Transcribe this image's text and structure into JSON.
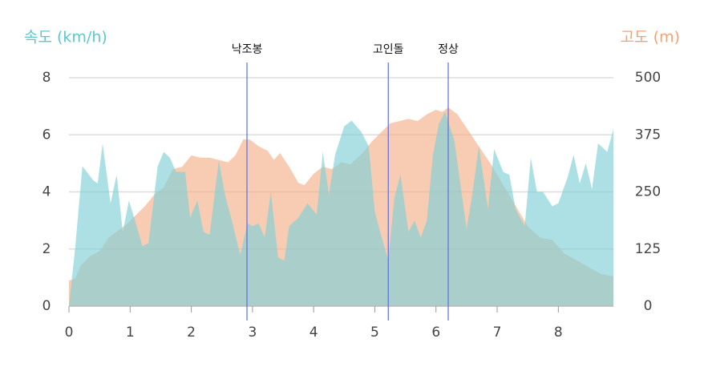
{
  "chart_data": {
    "type": "area",
    "ylabel": "속도 (km/h)",
    "y2label": "고도 (m)",
    "xlim": [
      0,
      8.9
    ],
    "xticks": [
      0,
      1,
      2,
      3,
      4,
      5,
      6,
      7,
      8
    ],
    "ylim": [
      0,
      8
    ],
    "yticks": [
      0,
      2,
      4,
      6,
      8
    ],
    "y2lim": [
      0,
      500
    ],
    "y2ticks": [
      0,
      125,
      250,
      375,
      500
    ],
    "grid": true,
    "series": [
      {
        "color": "#f5b088",
        "axis": "y2",
        "x": [
          0,
          0.1,
          0.2,
          0.35,
          0.5,
          0.65,
          0.8,
          0.95,
          1.1,
          1.25,
          1.4,
          1.55,
          1.7,
          1.85,
          2.0,
          2.15,
          2.3,
          2.45,
          2.6,
          2.72,
          2.85,
          2.95,
          3.1,
          3.25,
          3.35,
          3.45,
          3.6,
          3.75,
          3.85,
          4.0,
          4.15,
          4.3,
          4.45,
          4.6,
          4.8,
          4.95,
          5.1,
          5.25,
          5.4,
          5.55,
          5.7,
          5.85,
          6.0,
          6.1,
          6.2,
          6.35,
          6.5,
          6.7,
          6.9,
          7.1,
          7.3,
          7.5,
          7.7,
          7.9,
          8.1,
          8.3,
          8.5,
          8.7,
          8.9
        ],
        "values": [
          56,
          60,
          90,
          110,
          120,
          150,
          165,
          180,
          200,
          220,
          245,
          260,
          300,
          305,
          330,
          325,
          325,
          320,
          315,
          330,
          365,
          365,
          350,
          340,
          320,
          335,
          305,
          270,
          265,
          290,
          305,
          300,
          315,
          310,
          335,
          360,
          380,
          400,
          405,
          410,
          405,
          420,
          430,
          425,
          435,
          420,
          390,
          350,
          310,
          265,
          220,
          175,
          150,
          145,
          115,
          100,
          85,
          70,
          65
        ]
      },
      {
        "color": "#7fd0d6",
        "axis": "y",
        "x": [
          0,
          0.1,
          0.22,
          0.4,
          0.47,
          0.55,
          0.68,
          0.78,
          0.88,
          0.98,
          1.08,
          1.2,
          1.3,
          1.45,
          1.55,
          1.65,
          1.75,
          1.9,
          1.98,
          2.1,
          2.2,
          2.3,
          2.45,
          2.55,
          2.65,
          2.8,
          2.92,
          3.0,
          3.1,
          3.2,
          3.3,
          3.42,
          3.52,
          3.6,
          3.75,
          3.9,
          4.05,
          4.15,
          4.25,
          4.35,
          4.5,
          4.62,
          4.78,
          4.9,
          5.0,
          5.1,
          5.22,
          5.32,
          5.42,
          5.55,
          5.65,
          5.75,
          5.85,
          5.95,
          6.05,
          6.15,
          6.3,
          6.5,
          6.6,
          6.7,
          6.85,
          6.95,
          7.1,
          7.2,
          7.3,
          7.45,
          7.55,
          7.65,
          7.75,
          7.9,
          8.0,
          8.15,
          8.25,
          8.35,
          8.45,
          8.55,
          8.65,
          8.8,
          8.9
        ],
        "values": [
          0,
          2.0,
          4.9,
          4.4,
          4.3,
          5.7,
          3.6,
          4.6,
          2.6,
          3.7,
          3.0,
          2.1,
          2.2,
          4.9,
          5.4,
          5.2,
          4.7,
          4.7,
          3.1,
          3.7,
          2.6,
          2.5,
          5.1,
          3.9,
          3.1,
          1.8,
          2.9,
          2.8,
          2.9,
          2.4,
          4.0,
          1.7,
          1.6,
          2.8,
          3.1,
          3.6,
          3.2,
          5.4,
          3.9,
          5.3,
          6.3,
          6.5,
          6.1,
          5.6,
          3.3,
          2.5,
          1.6,
          3.8,
          4.6,
          2.6,
          3.0,
          2.4,
          3.0,
          5.3,
          6.4,
          6.8,
          5.8,
          2.7,
          4.0,
          5.6,
          3.4,
          5.5,
          4.7,
          4.6,
          3.4,
          2.8,
          5.2,
          4.0,
          4.0,
          3.5,
          3.6,
          4.5,
          5.3,
          4.3,
          5.0,
          4.1,
          5.7,
          5.4,
          6.2
        ]
      }
    ],
    "markers": [
      {
        "x": 2.91,
        "label": "낙조봉"
      },
      {
        "x": 5.22,
        "label": "고인돌"
      },
      {
        "x": 6.2,
        "label": "정상"
      }
    ]
  }
}
